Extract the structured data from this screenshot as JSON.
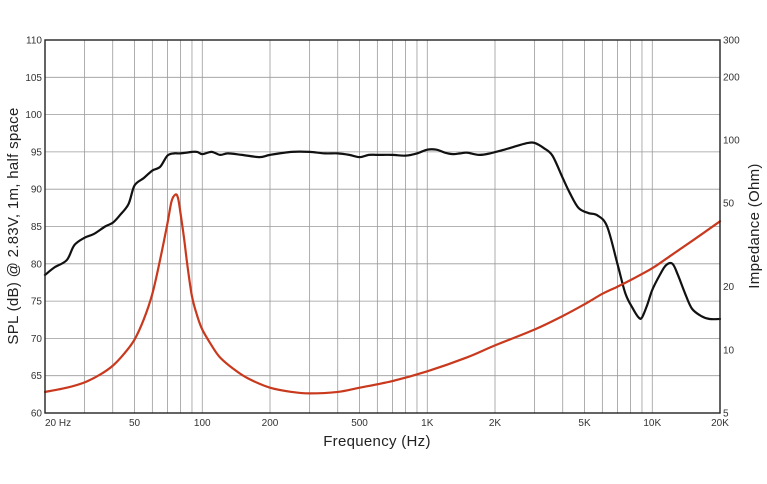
{
  "chart_data": {
    "type": "line",
    "xlabel": "Frequency (Hz)",
    "ylabel": "SPL (dB) @ 2.83V, 1m, half space",
    "y2label": "Impedance (Ohm)",
    "x_scale": "log",
    "xlim": [
      20,
      20000
    ],
    "ylim": [
      60,
      110
    ],
    "y2lim": [
      5,
      300
    ],
    "y2_scale": "log",
    "grid": true,
    "x_ticks": [
      {
        "value": 20,
        "label": "20  Hz"
      },
      {
        "value": 50,
        "label": "50"
      },
      {
        "value": 100,
        "label": "100"
      },
      {
        "value": 200,
        "label": "200"
      },
      {
        "value": 500,
        "label": "500"
      },
      {
        "value": 1000,
        "label": "1K"
      },
      {
        "value": 2000,
        "label": "2K"
      },
      {
        "value": 5000,
        "label": "5K"
      },
      {
        "value": 10000,
        "label": "10K"
      },
      {
        "value": 20000,
        "label": "20K"
      }
    ],
    "y_ticks": [
      "60",
      "65",
      "70",
      "75",
      "80",
      "85",
      "90",
      "95",
      "100",
      "105",
      "110"
    ],
    "y2_ticks": [
      {
        "value": 5,
        "label": "5"
      },
      {
        "value": 10,
        "label": "10"
      },
      {
        "value": 20,
        "label": "20"
      },
      {
        "value": 50,
        "label": "50"
      },
      {
        "value": 100,
        "label": "100"
      },
      {
        "value": 200,
        "label": "200"
      },
      {
        "value": 300,
        "label": "300"
      }
    ],
    "series": [
      {
        "axis": "left",
        "color": "#111111",
        "x": [
          20,
          22,
          25,
          27,
          30,
          33,
          37,
          40,
          43,
          47,
          50,
          55,
          60,
          65,
          70,
          75,
          80,
          90,
          95,
          100,
          110,
          120,
          130,
          150,
          180,
          200,
          250,
          300,
          350,
          400,
          450,
          500,
          550,
          600,
          700,
          800,
          900,
          1000,
          1100,
          1200,
          1300,
          1400,
          1500,
          1700,
          1900,
          2200,
          2500,
          2800,
          3000,
          3300,
          3600,
          4000,
          4300,
          4700,
          5200,
          5700,
          6300,
          7000,
          7600,
          8200,
          8700,
          9000,
          9500,
          10000,
          10800,
          11500,
          12300,
          13000,
          14000,
          15000,
          16500,
          18000,
          20000
        ],
        "values": [
          78.5,
          79.5,
          80.5,
          82.5,
          83.5,
          84.0,
          85.0,
          85.5,
          86.5,
          88.0,
          90.5,
          91.5,
          92.5,
          93.0,
          94.5,
          94.8,
          94.8,
          95.0,
          95.0,
          94.7,
          95.0,
          94.6,
          94.8,
          94.6,
          94.3,
          94.6,
          95.0,
          95.0,
          94.8,
          94.8,
          94.6,
          94.3,
          94.6,
          94.6,
          94.6,
          94.5,
          94.8,
          95.3,
          95.3,
          94.9,
          94.7,
          94.8,
          94.9,
          94.6,
          94.8,
          95.3,
          95.8,
          96.2,
          96.2,
          95.5,
          94.5,
          91.5,
          89.5,
          87.5,
          86.8,
          86.5,
          85.0,
          80.0,
          76.0,
          74.0,
          72.8,
          72.8,
          74.5,
          76.5,
          78.5,
          79.8,
          80.0,
          78.5,
          76.0,
          74.0,
          73.0,
          72.6,
          72.6
        ]
      },
      {
        "axis": "right",
        "color": "#c8391e",
        "x": [
          20,
          25,
          30,
          35,
          40,
          45,
          50,
          55,
          60,
          65,
          70,
          73,
          76,
          78,
          80,
          83,
          86,
          90,
          95,
          100,
          110,
          120,
          140,
          160,
          200,
          250,
          300,
          400,
          500,
          700,
          1000,
          1500,
          2000,
          3000,
          4000,
          5000,
          6000,
          7000,
          8000,
          10000,
          12000,
          15000,
          20000
        ],
        "values": [
          6.3,
          6.6,
          7.0,
          7.6,
          8.4,
          9.6,
          11.2,
          14.0,
          18.5,
          27.0,
          40.0,
          51.0,
          55.0,
          53.0,
          45.0,
          34.0,
          25.0,
          18.0,
          14.5,
          12.5,
          10.5,
          9.2,
          8.0,
          7.3,
          6.6,
          6.3,
          6.2,
          6.3,
          6.6,
          7.1,
          7.9,
          9.2,
          10.5,
          12.5,
          14.5,
          16.5,
          18.5,
          20.0,
          21.5,
          24.5,
          28.0,
          33.0,
          41.0
        ]
      }
    ]
  }
}
